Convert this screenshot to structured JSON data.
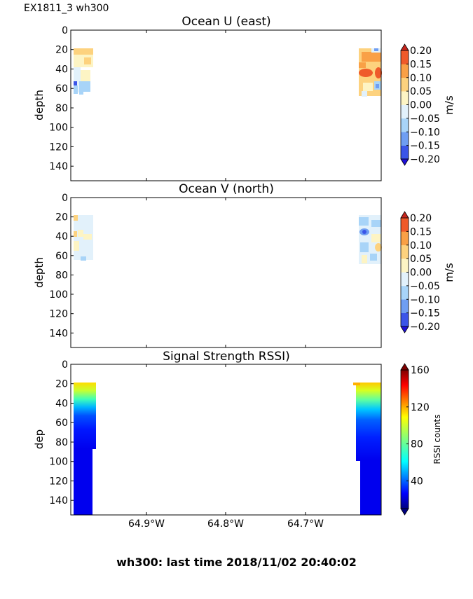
{
  "figure": {
    "corner_label": "EX1811_3 wh300",
    "footer": "wh300: last time 2018/11/02 20:40:02"
  },
  "chart_data": [
    {
      "type": "heatmap",
      "title": "Ocean U (east)",
      "ylabel": "depth",
      "xlabel": "",
      "ylim": [
        155,
        0
      ],
      "y_ticks": [
        0,
        20,
        40,
        60,
        80,
        100,
        120,
        140
      ],
      "x_ticks": [
        "64.9°W",
        "64.8°W",
        "64.7°W"
      ],
      "x_ticks_visible": false,
      "colorbar": {
        "label": "m/s",
        "levels": [
          -0.2,
          -0.15,
          -0.1,
          -0.05,
          0.0,
          0.05,
          0.1,
          0.15,
          0.2
        ],
        "tick_labels": [
          "0.20",
          "0.15",
          "0.10",
          "0.05",
          "0.00",
          "−0.05",
          "−0.10",
          "−0.15",
          "−0.20"
        ],
        "colors": [
          "#1e10d8",
          "#3b55e8",
          "#6f9ef2",
          "#a8d4f8",
          "#e2f1fb",
          "#fdf4c4",
          "#fdd27e",
          "#f9a046",
          "#ef5a2a",
          "#c7261e"
        ]
      },
      "values_ms": {
        "west_profile": {
          "depth_top": 20,
          "depth_bottom": 67,
          "typical": 0.05,
          "range": [
            -0.1,
            0.1
          ]
        },
        "east_profile": {
          "depth_top": 20,
          "depth_bottom": 70,
          "typical": 0.1,
          "range": [
            -0.05,
            0.2
          ]
        }
      }
    },
    {
      "type": "heatmap",
      "title": "Ocean V (north)",
      "ylabel": "depth",
      "xlabel": "",
      "ylim": [
        155,
        0
      ],
      "y_ticks": [
        0,
        20,
        40,
        60,
        80,
        100,
        120,
        140
      ],
      "x_ticks": [
        "64.9°W",
        "64.8°W",
        "64.7°W"
      ],
      "x_ticks_visible": false,
      "colorbar": {
        "label": "m/s",
        "levels": [
          -0.2,
          -0.15,
          -0.1,
          -0.05,
          0.0,
          0.05,
          0.1,
          0.15,
          0.2
        ],
        "tick_labels": [
          "0.20",
          "0.15",
          "0.10",
          "0.05",
          "0.00",
          "−0.05",
          "−0.10",
          "−0.15",
          "−0.20"
        ],
        "colors": [
          "#1e10d8",
          "#3b55e8",
          "#6f9ef2",
          "#a8d4f8",
          "#e2f1fb",
          "#fdf4c4",
          "#fdd27e",
          "#f9a046",
          "#ef5a2a",
          "#c7261e"
        ]
      },
      "values_ms": {
        "west_profile": {
          "depth_top": 20,
          "depth_bottom": 65,
          "typical": -0.02,
          "range": [
            -0.1,
            0.05
          ]
        },
        "east_profile": {
          "depth_top": 20,
          "depth_bottom": 70,
          "typical": -0.02,
          "range": [
            -0.1,
            0.1
          ]
        }
      }
    },
    {
      "type": "heatmap",
      "title": "Signal Strength RSSI)",
      "ylabel": "dep",
      "xlabel": "",
      "ylim": [
        155,
        0
      ],
      "y_ticks": [
        0,
        20,
        40,
        60,
        80,
        100,
        120,
        140
      ],
      "x_ticks": [
        "64.9°W",
        "64.8°W",
        "64.7°W"
      ],
      "x_ticks_visible": true,
      "colorbar": {
        "label": "RSSI counts",
        "range": [
          10,
          160
        ],
        "tick_values": [
          40,
          80,
          120,
          160
        ],
        "tick_labels": [
          "160",
          "120",
          "80",
          "40"
        ]
      },
      "rssi_profile_by_depth": {
        "depths": [
          20,
          25,
          30,
          35,
          40,
          45,
          50,
          60,
          70,
          80,
          100,
          120,
          150
        ],
        "counts": [
          125,
          110,
          95,
          80,
          65,
          52,
          44,
          38,
          33,
          30,
          28,
          26,
          25
        ]
      }
    }
  ]
}
